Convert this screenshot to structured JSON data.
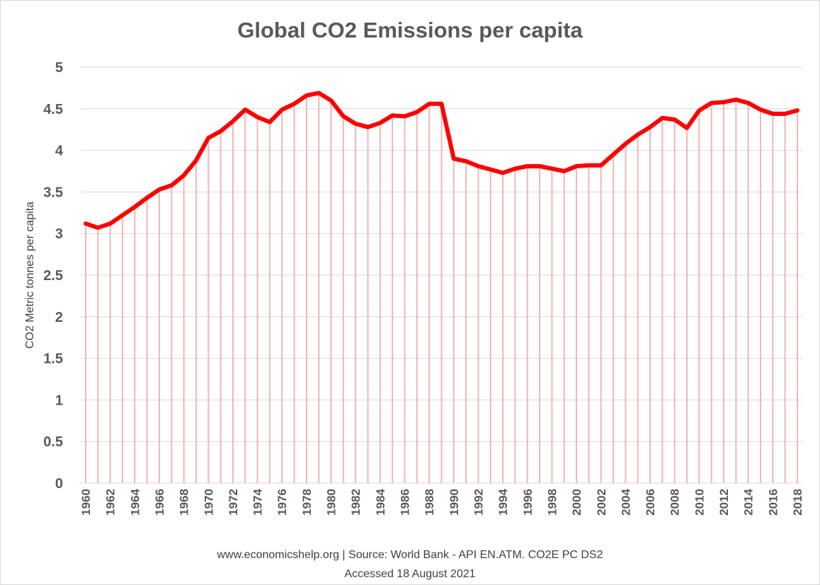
{
  "chart_data": {
    "type": "line",
    "title": "Global CO2 Emissions per capita",
    "ylabel": "CO2 Metric tonnes per capita",
    "xlabel": "",
    "ylim": [
      0,
      5
    ],
    "yticks": [
      "0",
      "0.5",
      "1",
      "1.5",
      "2",
      "2.5",
      "3",
      "3.5",
      "4",
      "4.5",
      "5"
    ],
    "x": [
      1960,
      1961,
      1962,
      1963,
      1964,
      1965,
      1966,
      1967,
      1968,
      1969,
      1970,
      1971,
      1972,
      1973,
      1974,
      1975,
      1976,
      1977,
      1978,
      1979,
      1980,
      1981,
      1982,
      1983,
      1984,
      1985,
      1986,
      1987,
      1988,
      1989,
      1990,
      1991,
      1992,
      1993,
      1994,
      1995,
      1996,
      1997,
      1998,
      1999,
      2000,
      2001,
      2002,
      2003,
      2004,
      2005,
      2006,
      2007,
      2008,
      2009,
      2010,
      2011,
      2012,
      2013,
      2014,
      2015,
      2016,
      2017,
      2018
    ],
    "xtick_labels": [
      "1960",
      "1962",
      "1964",
      "1966",
      "1968",
      "1970",
      "1972",
      "1974",
      "1976",
      "1978",
      "1980",
      "1982",
      "1984",
      "1986",
      "1988",
      "1990",
      "1992",
      "1994",
      "1996",
      "1998",
      "2000",
      "2002",
      "2004",
      "2006",
      "2008",
      "2010",
      "2012",
      "2014",
      "2016",
      "2018"
    ],
    "series": [
      {
        "values": [
          3.12,
          3.07,
          3.12,
          3.22,
          3.32,
          3.43,
          3.53,
          3.58,
          3.7,
          3.88,
          4.15,
          4.23,
          4.35,
          4.49,
          4.4,
          4.34,
          4.49,
          4.56,
          4.66,
          4.69,
          4.6,
          4.41,
          4.32,
          4.28,
          4.33,
          4.42,
          4.41,
          4.46,
          4.56,
          4.56,
          3.9,
          3.87,
          3.81,
          3.77,
          3.73,
          3.78,
          3.81,
          3.81,
          3.78,
          3.75,
          3.81,
          3.82,
          3.82,
          3.95,
          4.08,
          4.19,
          4.28,
          4.39,
          4.37,
          4.27,
          4.48,
          4.57,
          4.58,
          4.61,
          4.57,
          4.49,
          4.44,
          4.44,
          4.48
        ],
        "line_color": "#ff0000",
        "drop_line_color": "#f2b5b5"
      }
    ],
    "grid": true,
    "legend": "none"
  },
  "footer": {
    "source": "www.economicshelp.org  | Source: World Bank - API EN.ATM. CO2E PC DS2",
    "accessed": "Accessed 18 August 2021"
  }
}
